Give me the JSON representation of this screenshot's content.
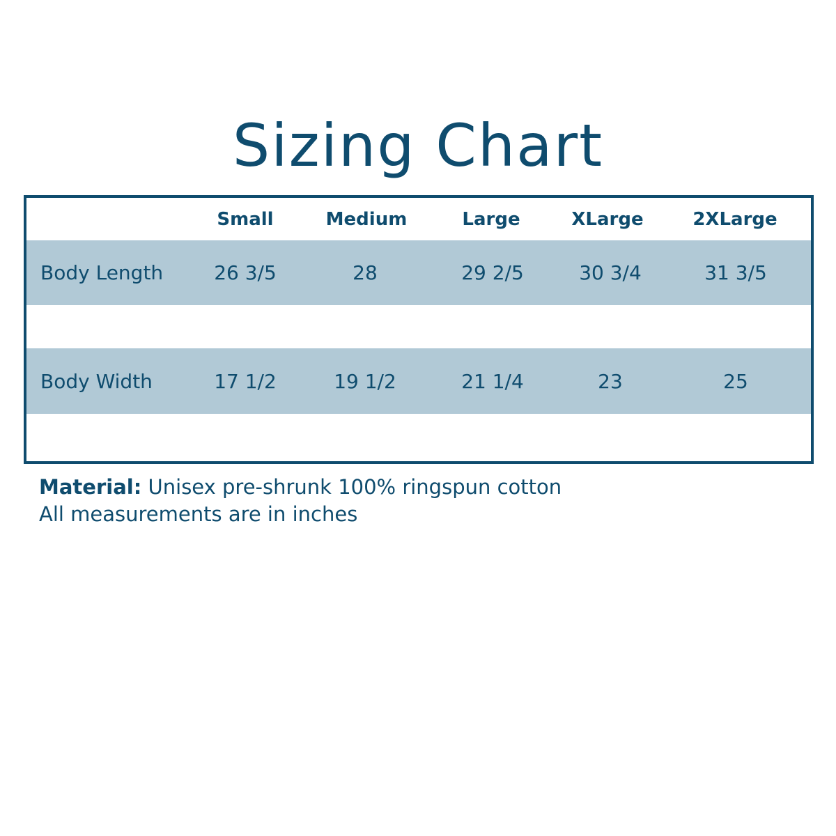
{
  "title": "Sizing Chart",
  "colors": {
    "primary": "#0f4c6e",
    "band": "#b1c9d6"
  },
  "table": {
    "columns": [
      "Small",
      "Medium",
      "Large",
      "XLarge",
      "2XLarge"
    ],
    "rows": [
      {
        "label": "Body Length",
        "values": [
          "26 3/5",
          "28",
          "29 2/5",
          "30 3/4",
          "31 3/5"
        ]
      },
      {
        "label": "Body Width",
        "values": [
          "17 1/2",
          "19 1/2",
          "21 1/4",
          "23",
          "25"
        ]
      }
    ]
  },
  "notes": {
    "material_label": "Material:",
    "material_text": " Unisex pre-shrunk 100% ringspun cotton",
    "units": "All measurements are in inches"
  }
}
